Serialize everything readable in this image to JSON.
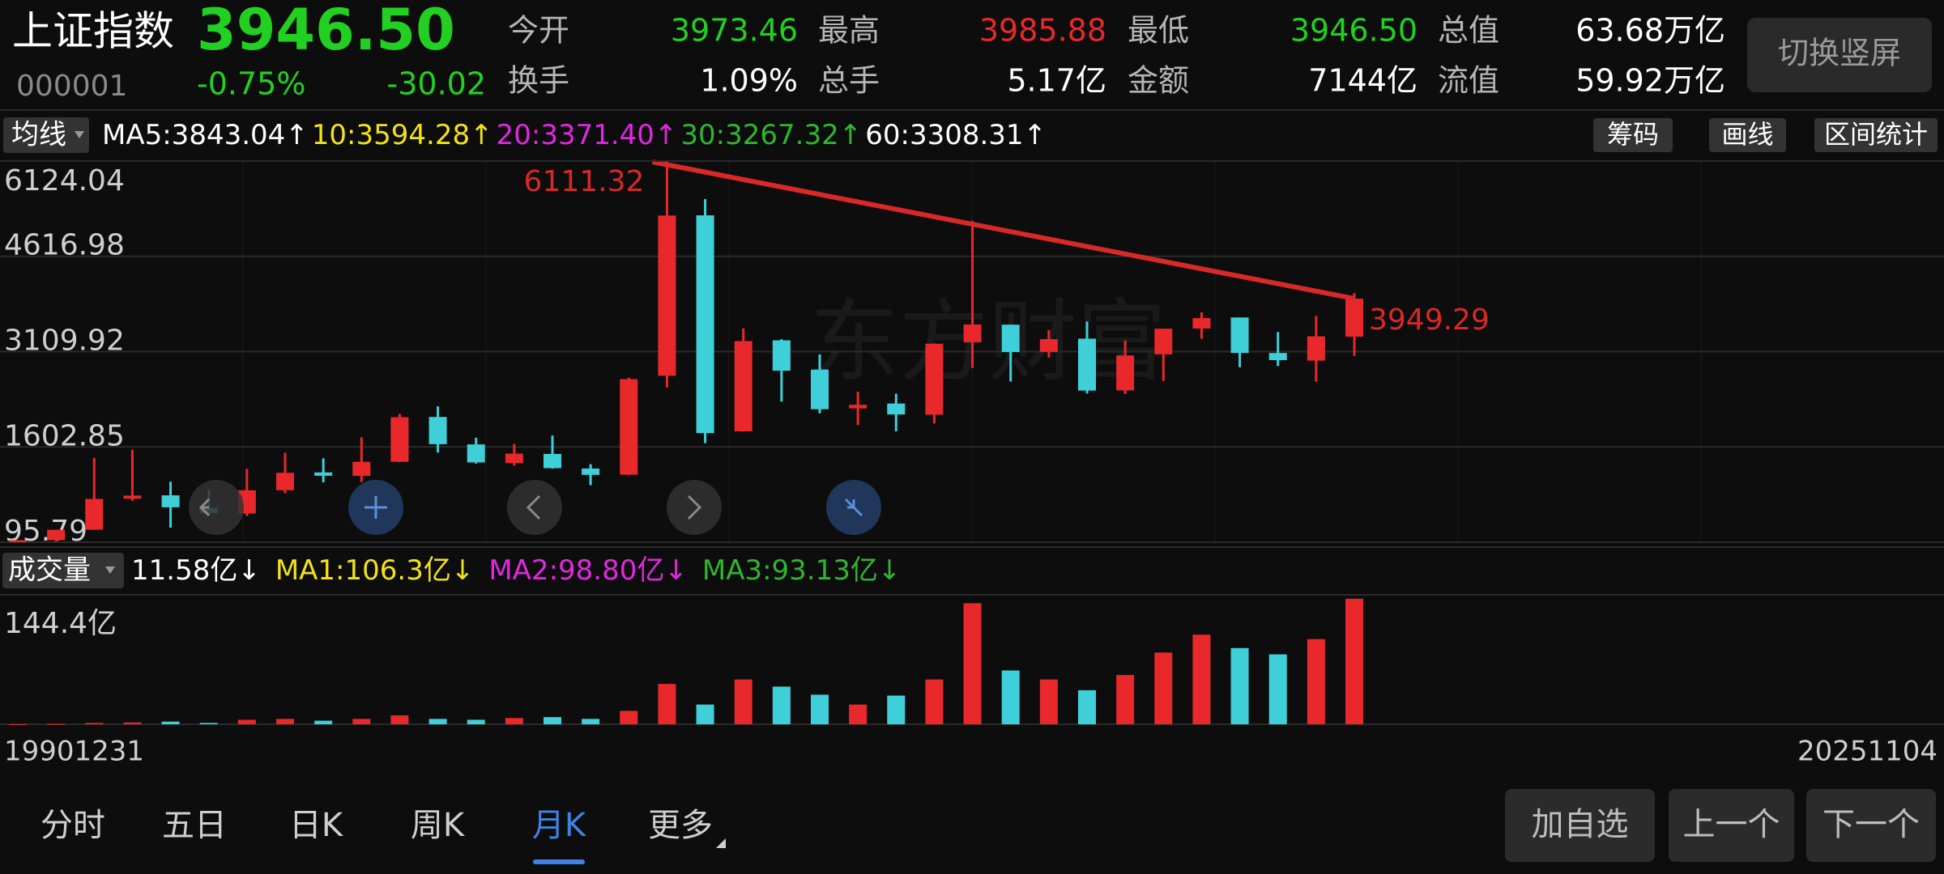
{
  "header": {
    "name": "上证指数",
    "price": "3946.50",
    "code": "000001",
    "change_pct": "-0.75%",
    "change": "-30.02",
    "stats": [
      {
        "label": "今开",
        "value": "3973.46"
      },
      {
        "label": "最高",
        "value": "3985.88"
      },
      {
        "label": "最低",
        "value": "3946.50"
      },
      {
        "label": "总值",
        "value": "63.68万亿"
      },
      {
        "label": "换手",
        "value": "1.09%"
      },
      {
        "label": "总手",
        "value": "5.17亿"
      },
      {
        "label": "金额",
        "value": "7144亿"
      },
      {
        "label": "流值",
        "value": "59.92万亿"
      }
    ],
    "switch_button": "切换竖屏"
  },
  "ma_bar": {
    "selector": "均线",
    "items": [
      "MA5:3843.04↑",
      "10:3594.28↑",
      "20:3371.40↑",
      "30:3267.32↑",
      "60:3308.31↑"
    ],
    "buttons": [
      "筹码",
      "画线",
      "区间统计"
    ]
  },
  "volume_bar": {
    "selector": "成交量",
    "items": [
      "11.58亿↓",
      "MA1:106.3亿↓",
      "MA2:98.80亿↓",
      "MA3:93.13亿↓"
    ]
  },
  "watermark": "东方财富",
  "chart_data": [
    {
      "type": "candlestick",
      "open": [
        96,
        128,
        293,
        784,
        837,
        638,
        550,
        918,
        1200,
        1144,
        1368,
        2077,
        1643,
        1347,
        1492,
        1261,
        1163,
        2728,
        5265,
        1849,
        3289,
        2826,
        2212,
        2289,
        2112,
        3258,
        3536,
        3105,
        3315,
        2497,
        3067,
        3475,
        3650,
        3088,
        2968,
        3347
      ],
      "high": [
        128,
        292,
        1429,
        1558,
        1053,
        926,
        1258,
        1510,
        1422,
        1756,
        2125,
        2245,
        1748,
        1649,
        1783,
        1329,
        2698,
        6124,
        5523,
        3478,
        3306,
        3067,
        2478,
        2444,
        3239,
        5178,
        3539,
        3450,
        3587,
        3288,
        3475,
        3732,
        3651,
        3419,
        3674,
        4034
      ],
      "low": [
        96,
        105,
        293,
        750,
        325,
        524,
        512,
        870,
        1043,
        1047,
        1361,
        1514,
        1339,
        1307,
        1259,
        998,
        1161,
        2541,
        1664,
        1845,
        2319,
        2134,
        1949,
        1849,
        1974,
        2850,
        2638,
        3017,
        2449,
        2440,
        2646,
        3312,
        2863,
        2882,
        2635,
        3041
      ],
      "close": [
        128,
        292,
        780,
        833,
        648,
        555,
        917,
        1194,
        1147,
        1367,
        2073,
        1646,
        1358,
        1497,
        1267,
        1161,
        2675,
        5262,
        1821,
        3277,
        2808,
        2199,
        2269,
        2116,
        3235,
        3539,
        3104,
        3307,
        2494,
        3050,
        3473,
        3640,
        3089,
        2975,
        3352,
        3946.5
      ],
      "ylim": [
        95.79,
        6124.04
      ],
      "yticks": [
        6124.04,
        4616.98,
        3109.92,
        1602.85,
        95.79
      ],
      "grid": true,
      "up_color": "#e8282b",
      "down_color": "#3fcfd8",
      "trend_line": {
        "values": [
          6111.32,
          3949.29
        ],
        "color": "#d92828"
      },
      "x_range_labels": [
        "19901231",
        "20251104"
      ]
    },
    {
      "type": "bar",
      "values": [
        0.1,
        0.3,
        1.5,
        2,
        3,
        1.5,
        5,
        6,
        4,
        6,
        10,
        6,
        5,
        7,
        8,
        6,
        15,
        45,
        22,
        50,
        42,
        33,
        22,
        32,
        50,
        135,
        60,
        50,
        38,
        55,
        80,
        100,
        85,
        78,
        95,
        140
      ],
      "ylim": [
        0,
        144.4
      ],
      "yticks": [
        {
          "value": 144.4,
          "label": "144.4亿"
        }
      ]
    }
  ],
  "tabs": {
    "items": [
      "分时",
      "五日",
      "日K",
      "周K",
      "月K",
      "更多"
    ],
    "selected": "月K"
  },
  "buttons": [
    "加自选",
    "上一个",
    "下一个"
  ]
}
